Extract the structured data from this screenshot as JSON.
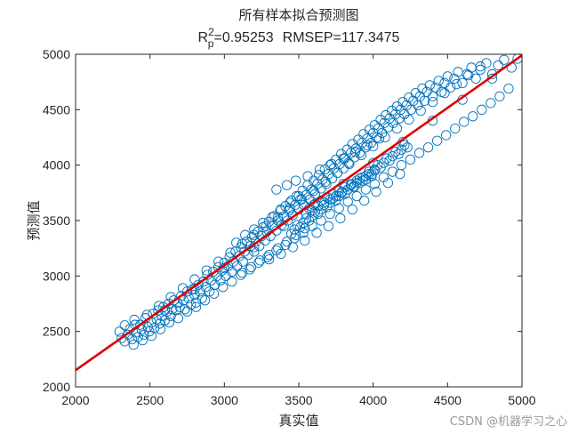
{
  "chart_data": {
    "type": "scatter",
    "title": "所有样本拟合预测图",
    "subtitle": {
      "r_base": "R",
      "r_sub": "p",
      "r_sup": "2",
      "r_value": "=0.95253",
      "rmsep": "RMSEP=117.3475"
    },
    "xlabel": "真实值",
    "ylabel": "预测值",
    "xlim": [
      2000,
      5000
    ],
    "ylim": [
      2000,
      5000
    ],
    "xticks": [
      2000,
      2500,
      3000,
      3500,
      4000,
      4500,
      5000
    ],
    "yticks": [
      2000,
      2500,
      3000,
      3500,
      4000,
      4500,
      5000
    ],
    "grid": false,
    "marker": "open-circle",
    "marker_color": "#0072BD",
    "fit_line": {
      "x": [
        2000,
        5000
      ],
      "y": [
        2150,
        4990
      ],
      "color": "#E00000"
    },
    "points": [
      [
        2295,
        2498
      ],
      [
        2310,
        2440
      ],
      [
        2330,
        2555
      ],
      [
        2350,
        2470
      ],
      [
        2365,
        2520
      ],
      [
        2380,
        2430
      ],
      [
        2395,
        2605
      ],
      [
        2405,
        2490
      ],
      [
        2420,
        2450
      ],
      [
        2435,
        2560
      ],
      [
        2445,
        2515
      ],
      [
        2460,
        2470
      ],
      [
        2470,
        2620
      ],
      [
        2485,
        2540
      ],
      [
        2495,
        2500
      ],
      [
        2510,
        2580
      ],
      [
        2520,
        2660
      ],
      [
        2530,
        2530
      ],
      [
        2545,
        2610
      ],
      [
        2555,
        2690
      ],
      [
        2565,
        2570
      ],
      [
        2580,
        2640
      ],
      [
        2590,
        2720
      ],
      [
        2600,
        2600
      ],
      [
        2615,
        2680
      ],
      [
        2625,
        2750
      ],
      [
        2640,
        2640
      ],
      [
        2650,
        2700
      ],
      [
        2660,
        2780
      ],
      [
        2675,
        2690
      ],
      [
        2685,
        2760
      ],
      [
        2700,
        2720
      ],
      [
        2710,
        2820
      ],
      [
        2725,
        2780
      ],
      [
        2735,
        2700
      ],
      [
        2750,
        2860
      ],
      [
        2760,
        2800
      ],
      [
        2775,
        2740
      ],
      [
        2785,
        2880
      ],
      [
        2800,
        2830
      ],
      [
        2810,
        2760
      ],
      [
        2825,
        2920
      ],
      [
        2835,
        2860
      ],
      [
        2850,
        2800
      ],
      [
        2860,
        2950
      ],
      [
        2875,
        2900
      ],
      [
        2885,
        3010
      ],
      [
        2900,
        2860
      ],
      [
        2910,
        2960
      ],
      [
        2925,
        3040
      ],
      [
        2935,
        2920
      ],
      [
        2950,
        3000
      ],
      [
        2960,
        3080
      ],
      [
        2975,
        2960
      ],
      [
        2985,
        3050
      ],
      [
        3000,
        3120
      ],
      [
        3010,
        3000
      ],
      [
        3025,
        3090
      ],
      [
        3035,
        3170
      ],
      [
        3050,
        3040
      ],
      [
        3060,
        3130
      ],
      [
        3075,
        3220
      ],
      [
        3085,
        3090
      ],
      [
        3100,
        3180
      ],
      [
        3110,
        3260
      ],
      [
        3125,
        3130
      ],
      [
        3135,
        3220
      ],
      [
        3150,
        3310
      ],
      [
        3160,
        3190
      ],
      [
        3175,
        3270
      ],
      [
        3185,
        3350
      ],
      [
        3200,
        3220
      ],
      [
        3210,
        3310
      ],
      [
        3225,
        3400
      ],
      [
        3235,
        3270
      ],
      [
        3250,
        3360
      ],
      [
        3260,
        3440
      ],
      [
        3275,
        3320
      ],
      [
        3285,
        3400
      ],
      [
        3300,
        3490
      ],
      [
        3310,
        3360
      ],
      [
        3325,
        3450
      ],
      [
        3335,
        3540
      ],
      [
        3350,
        3410
      ],
      [
        3360,
        3500
      ],
      [
        3375,
        3590
      ],
      [
        3385,
        3460
      ],
      [
        3400,
        3540
      ],
      [
        3410,
        3630
      ],
      [
        3425,
        3500
      ],
      [
        3435,
        3590
      ],
      [
        3450,
        3680
      ],
      [
        3460,
        3550
      ],
      [
        3475,
        3640
      ],
      [
        3485,
        3720
      ],
      [
        3500,
        3600
      ],
      [
        3510,
        3690
      ],
      [
        3525,
        3770
      ],
      [
        3535,
        3640
      ],
      [
        3550,
        3730
      ],
      [
        3560,
        3820
      ],
      [
        3575,
        3690
      ],
      [
        3585,
        3780
      ],
      [
        3600,
        3860
      ],
      [
        3610,
        3740
      ],
      [
        3625,
        3830
      ],
      [
        3635,
        3910
      ],
      [
        3650,
        3790
      ],
      [
        3660,
        3870
      ],
      [
        3675,
        3960
      ],
      [
        3685,
        3830
      ],
      [
        3700,
        3920
      ],
      [
        3710,
        4000
      ],
      [
        3725,
        3880
      ],
      [
        3735,
        3970
      ],
      [
        3750,
        4050
      ],
      [
        3760,
        3930
      ],
      [
        3775,
        4010
      ],
      [
        3785,
        4100
      ],
      [
        3800,
        3970
      ],
      [
        3810,
        4060
      ],
      [
        3825,
        4140
      ],
      [
        3835,
        4020
      ],
      [
        3850,
        4110
      ],
      [
        3860,
        4190
      ],
      [
        3875,
        4070
      ],
      [
        3885,
        4150
      ],
      [
        3900,
        4230
      ],
      [
        3910,
        4110
      ],
      [
        3925,
        4200
      ],
      [
        3935,
        4280
      ],
      [
        3950,
        4160
      ],
      [
        3960,
        4240
      ],
      [
        3975,
        4320
      ],
      [
        3985,
        4200
      ],
      [
        4000,
        4290
      ],
      [
        4010,
        4360
      ],
      [
        4025,
        4250
      ],
      [
        4035,
        4330
      ],
      [
        4050,
        4410
      ],
      [
        4060,
        4290
      ],
      [
        4075,
        4380
      ],
      [
        4085,
        4450
      ],
      [
        4100,
        4340
      ],
      [
        4110,
        4420
      ],
      [
        4125,
        4490
      ],
      [
        4135,
        4380
      ],
      [
        4150,
        4460
      ],
      [
        4160,
        4530
      ],
      [
        4175,
        4420
      ],
      [
        4185,
        4500
      ],
      [
        4200,
        4570
      ],
      [
        4210,
        4460
      ],
      [
        4225,
        4540
      ],
      [
        4240,
        4610
      ],
      [
        4255,
        4500
      ],
      [
        4270,
        4580
      ],
      [
        4285,
        4650
      ],
      [
        4300,
        4540
      ],
      [
        4315,
        4620
      ],
      [
        4330,
        4690
      ],
      [
        4345,
        4580
      ],
      [
        4360,
        4660
      ],
      [
        4380,
        4720
      ],
      [
        4400,
        4620
      ],
      [
        4420,
        4700
      ],
      [
        4440,
        4760
      ],
      [
        4460,
        4660
      ],
      [
        4480,
        4740
      ],
      [
        4500,
        4800
      ],
      [
        4520,
        4700
      ],
      [
        4545,
        4780
      ],
      [
        4570,
        4840
      ],
      [
        4600,
        4740
      ],
      [
        4630,
        4820
      ],
      [
        4660,
        4880
      ],
      [
        4690,
        4780
      ],
      [
        4720,
        4860
      ],
      [
        4760,
        4920
      ],
      [
        4800,
        4820
      ],
      [
        4840,
        4900
      ],
      [
        4880,
        4950
      ],
      [
        4930,
        4880
      ],
      [
        4970,
        4960
      ],
      [
        2330,
        2410
      ],
      [
        2390,
        2380
      ],
      [
        2450,
        2420
      ],
      [
        2510,
        2460
      ],
      [
        2570,
        2520
      ],
      [
        2630,
        2580
      ],
      [
        2690,
        2620
      ],
      [
        2750,
        2680
      ],
      [
        2810,
        2720
      ],
      [
        2870,
        2780
      ],
      [
        2930,
        2840
      ],
      [
        2990,
        2900
      ],
      [
        3050,
        2950
      ],
      [
        3110,
        3010
      ],
      [
        3170,
        3060
      ],
      [
        3230,
        3120
      ],
      [
        3290,
        3170
      ],
      [
        3350,
        3230
      ],
      [
        3410,
        3280
      ],
      [
        3470,
        3340
      ],
      [
        3530,
        3390
      ],
      [
        3590,
        3450
      ],
      [
        3650,
        3500
      ],
      [
        3710,
        3560
      ],
      [
        3770,
        3610
      ],
      [
        3830,
        3670
      ],
      [
        3890,
        3720
      ],
      [
        3950,
        3780
      ],
      [
        4010,
        3830
      ],
      [
        4070,
        3890
      ],
      [
        4130,
        3940
      ],
      [
        4190,
        4000
      ],
      [
        4250,
        4050
      ],
      [
        4310,
        4110
      ],
      [
        4370,
        4160
      ],
      [
        4430,
        4220
      ],
      [
        4490,
        4270
      ],
      [
        4550,
        4330
      ],
      [
        4610,
        4390
      ],
      [
        4670,
        4440
      ],
      [
        4730,
        4500
      ],
      [
        4790,
        4560
      ],
      [
        4850,
        4620
      ],
      [
        4910,
        4690
      ],
      [
        2400,
        2560
      ],
      [
        2480,
        2650
      ],
      [
        2560,
        2730
      ],
      [
        2640,
        2810
      ],
      [
        2720,
        2890
      ],
      [
        2800,
        2970
      ],
      [
        2880,
        3050
      ],
      [
        2960,
        3130
      ],
      [
        3040,
        3210
      ],
      [
        3120,
        3290
      ],
      [
        3200,
        3370
      ],
      [
        3280,
        3450
      ],
      [
        3360,
        3530
      ],
      [
        3440,
        3610
      ],
      [
        3520,
        3690
      ],
      [
        3600,
        3770
      ],
      [
        3680,
        3850
      ],
      [
        3760,
        3930
      ],
      [
        3840,
        4010
      ],
      [
        3920,
        4090
      ],
      [
        4000,
        4170
      ],
      [
        4080,
        4250
      ],
      [
        4160,
        4330
      ],
      [
        4240,
        4410
      ],
      [
        4320,
        4490
      ],
      [
        4400,
        4570
      ],
      [
        4480,
        4650
      ],
      [
        4560,
        4730
      ],
      [
        4640,
        4810
      ],
      [
        4720,
        4890
      ],
      [
        2600,
        2690
      ],
      [
        2800,
        2880
      ],
      [
        3000,
        3070
      ],
      [
        3200,
        3260
      ],
      [
        3400,
        3450
      ],
      [
        3600,
        3640
      ],
      [
        3800,
        3830
      ],
      [
        4000,
        4020
      ],
      [
        4200,
        4210
      ],
      [
        4400,
        4400
      ],
      [
        4600,
        4590
      ],
      [
        4800,
        4780
      ],
      [
        3350,
        3780
      ],
      [
        3420,
        3820
      ],
      [
        3480,
        3860
      ],
      [
        3560,
        3900
      ],
      [
        3640,
        3960
      ],
      [
        3720,
        4010
      ],
      [
        3800,
        4060
      ],
      [
        3880,
        4120
      ],
      [
        3960,
        4180
      ],
      [
        4040,
        4240
      ],
      [
        3300,
        3150
      ],
      [
        3380,
        3200
      ],
      [
        3460,
        3260
      ],
      [
        3540,
        3320
      ],
      [
        3620,
        3390
      ],
      [
        3700,
        3450
      ],
      [
        3780,
        3520
      ],
      [
        3860,
        3600
      ],
      [
        3940,
        3680
      ],
      [
        4020,
        3760
      ],
      [
        4100,
        3840
      ],
      [
        4180,
        3920
      ],
      [
        3550,
        3560
      ],
      [
        3570,
        3610
      ],
      [
        3590,
        3590
      ],
      [
        3610,
        3650
      ],
      [
        3630,
        3630
      ],
      [
        3650,
        3680
      ],
      [
        3670,
        3660
      ],
      [
        3690,
        3710
      ],
      [
        3710,
        3690
      ],
      [
        3730,
        3740
      ],
      [
        3750,
        3720
      ],
      [
        3770,
        3770
      ],
      [
        3790,
        3750
      ],
      [
        3810,
        3800
      ],
      [
        3830,
        3780
      ],
      [
        3850,
        3830
      ],
      [
        3870,
        3810
      ],
      [
        3890,
        3860
      ],
      [
        3910,
        3840
      ],
      [
        3930,
        3890
      ],
      [
        3950,
        3870
      ],
      [
        3970,
        3920
      ],
      [
        3990,
        3900
      ],
      [
        4010,
        3950
      ],
      [
        3450,
        3380
      ],
      [
        3470,
        3420
      ],
      [
        3490,
        3460
      ],
      [
        3510,
        3440
      ],
      [
        3530,
        3480
      ],
      [
        3550,
        3520
      ],
      [
        3570,
        3500
      ],
      [
        3590,
        3540
      ],
      [
        3610,
        3580
      ],
      [
        3630,
        3560
      ],
      [
        3650,
        3600
      ],
      [
        3670,
        3640
      ],
      [
        3690,
        3620
      ],
      [
        3710,
        3660
      ],
      [
        3730,
        3700
      ],
      [
        3750,
        3680
      ],
      [
        3770,
        3720
      ],
      [
        3790,
        3760
      ],
      [
        3810,
        3740
      ],
      [
        3830,
        3780
      ],
      [
        3850,
        3820
      ],
      [
        3870,
        3800
      ],
      [
        3890,
        3840
      ],
      [
        3910,
        3880
      ],
      [
        3930,
        3860
      ],
      [
        3950,
        3900
      ],
      [
        3970,
        3940
      ],
      [
        3990,
        3920
      ],
      [
        4010,
        3960
      ],
      [
        4030,
        4000
      ],
      [
        4050,
        3980
      ],
      [
        4070,
        4020
      ],
      [
        4090,
        4060
      ],
      [
        4110,
        4040
      ],
      [
        4130,
        4080
      ],
      [
        4150,
        4120
      ],
      [
        4170,
        4100
      ],
      [
        4190,
        4140
      ],
      [
        4210,
        4180
      ],
      [
        4230,
        4160
      ],
      [
        3080,
        3300
      ],
      [
        3140,
        3370
      ],
      [
        3200,
        3420
      ],
      [
        3260,
        3480
      ],
      [
        3320,
        3530
      ],
      [
        3380,
        3600
      ],
      [
        3440,
        3660
      ],
      [
        3500,
        3720
      ],
      [
        3120,
        3030
      ],
      [
        3180,
        3080
      ],
      [
        3240,
        3140
      ],
      [
        3300,
        3190
      ],
      [
        3360,
        3250
      ],
      [
        3420,
        3310
      ],
      [
        3480,
        3370
      ],
      [
        3540,
        3430
      ]
    ]
  },
  "watermark": "CSDN @机器学习之心"
}
